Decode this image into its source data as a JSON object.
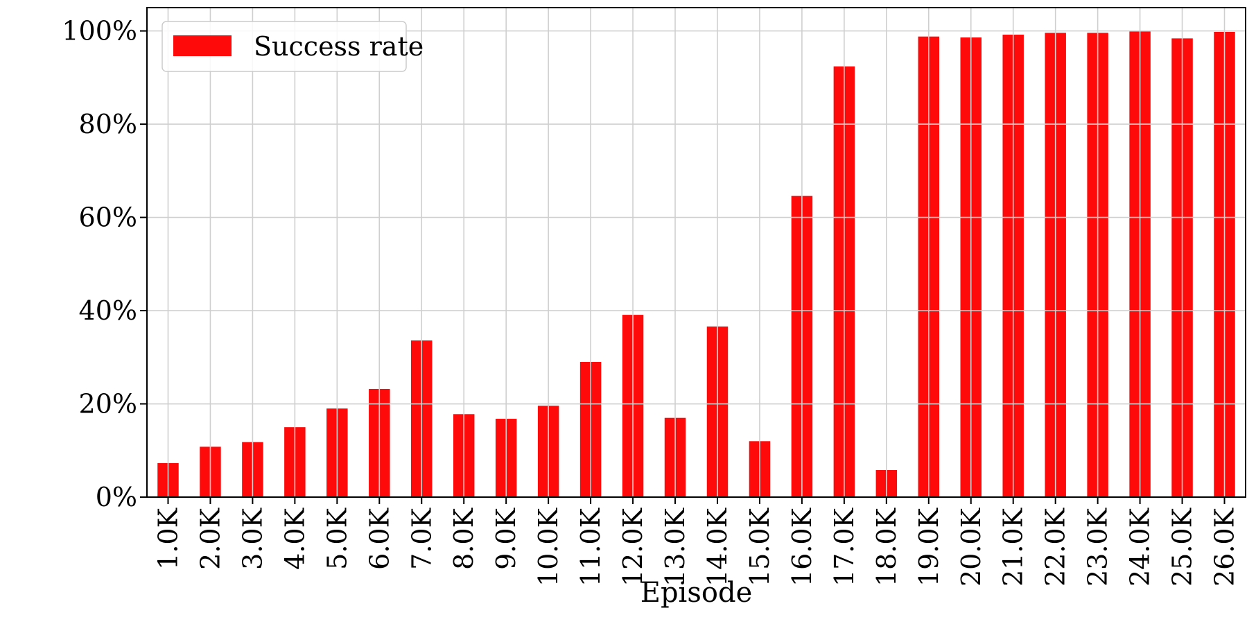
{
  "chart_data": {
    "type": "bar",
    "title": "",
    "xlabel": "Episode",
    "ylabel": "",
    "categories": [
      "1.0K",
      "2.0K",
      "3.0K",
      "4.0K",
      "5.0K",
      "6.0K",
      "7.0K",
      "8.0K",
      "9.0K",
      "10.0K",
      "11.0K",
      "12.0K",
      "13.0K",
      "14.0K",
      "15.0K",
      "16.0K",
      "17.0K",
      "18.0K",
      "19.0K",
      "20.0K",
      "21.0K",
      "22.0K",
      "23.0K",
      "24.0K",
      "25.0K",
      "26.0K"
    ],
    "series": [
      {
        "name": "Success rate",
        "color": "#ff0a0a",
        "values": [
          7.3,
          10.8,
          11.8,
          15.0,
          19.0,
          23.2,
          33.6,
          17.8,
          16.8,
          19.6,
          29.0,
          39.1,
          17.0,
          36.6,
          12.0,
          64.6,
          92.4,
          5.8,
          98.8,
          98.6,
          99.2,
          99.6,
          99.6,
          99.9,
          98.4,
          99.8
        ]
      }
    ],
    "ylim": [
      0,
      105
    ],
    "yticks": [
      0,
      20,
      40,
      60,
      80,
      100
    ],
    "ytick_labels": [
      "0%",
      "20%",
      "40%",
      "60%",
      "80%",
      "100%"
    ],
    "grid": true,
    "legend_position": "top-left"
  }
}
